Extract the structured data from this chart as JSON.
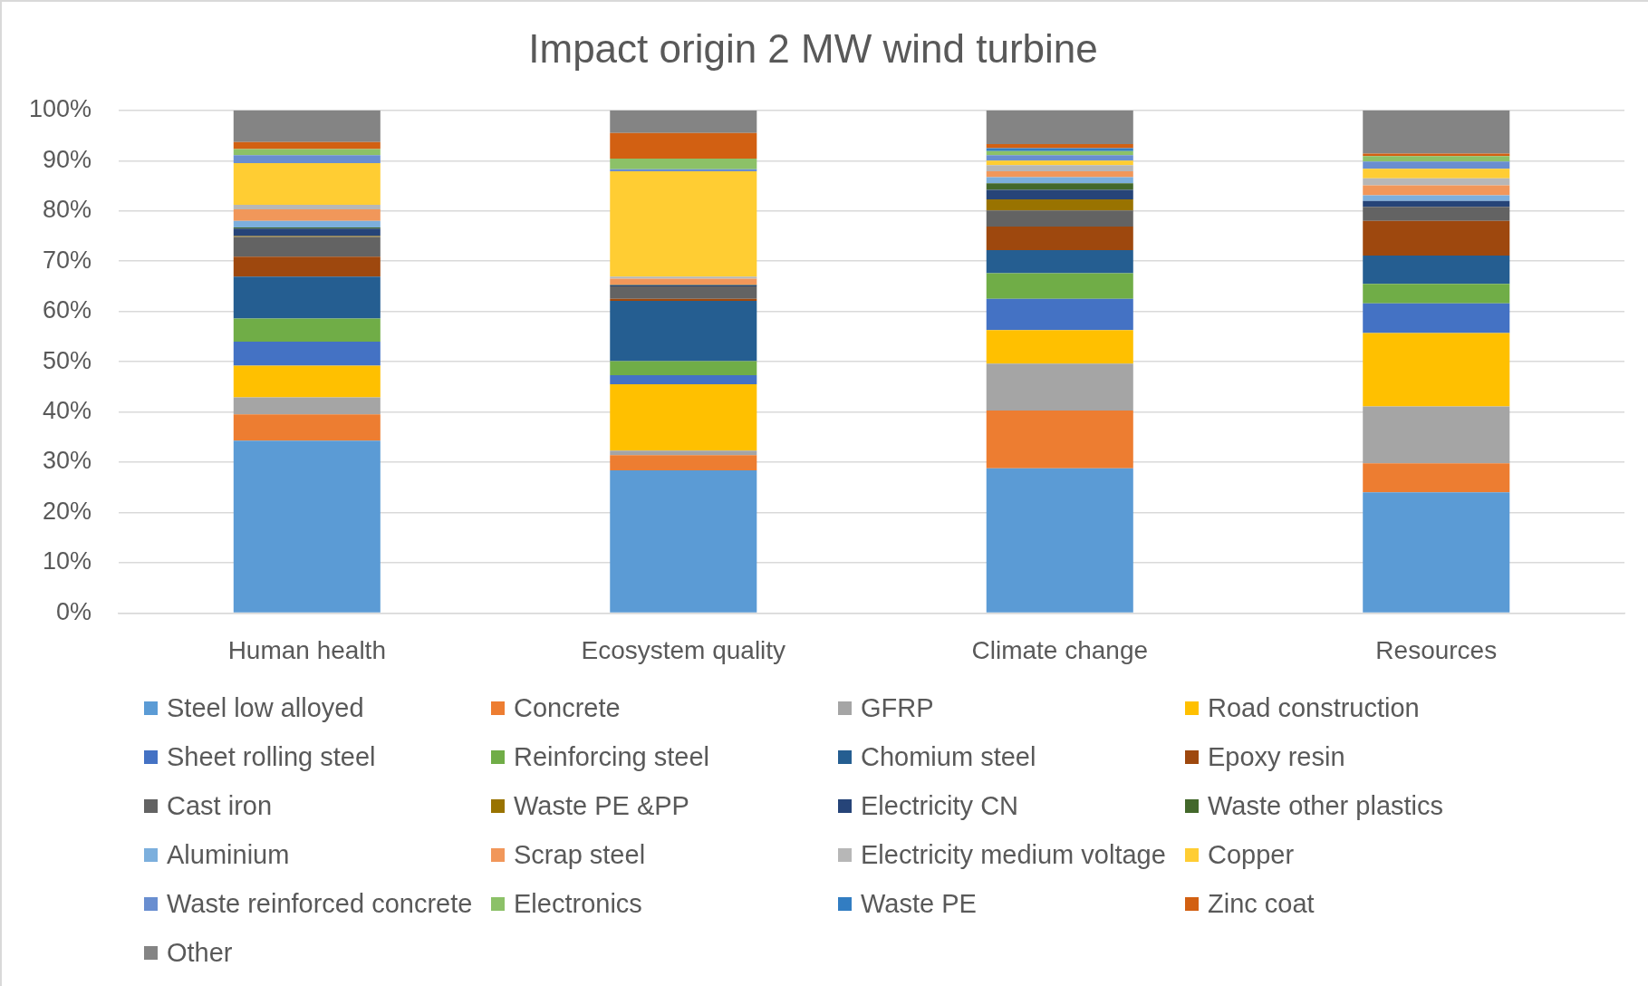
{
  "chart_data": {
    "type": "bar",
    "title": "Impact origin 2 MW wind turbine",
    "categories": [
      "Human health",
      "Ecosystem quality",
      "Climate change",
      "Resources"
    ],
    "stacked": true,
    "grid": "y",
    "legend": "bottom",
    "ylim": [
      0,
      100
    ],
    "yticks": [
      {
        "value": 0,
        "label": "0%"
      },
      {
        "value": 10,
        "label": "10%"
      },
      {
        "value": 20,
        "label": "20%"
      },
      {
        "value": 30,
        "label": "30%"
      },
      {
        "value": 40,
        "label": "40%"
      },
      {
        "value": 50,
        "label": "50%"
      },
      {
        "value": 60,
        "label": "60%"
      },
      {
        "value": 70,
        "label": "70%"
      },
      {
        "value": 80,
        "label": "80%"
      },
      {
        "value": 90,
        "label": "90%"
      },
      {
        "value": 100,
        "label": "100%"
      }
    ],
    "series": [
      {
        "name": "Steel low alloyed",
        "color": "#5b9bd5",
        "values": [
          34.3,
          28.4,
          28.8,
          24.0
        ]
      },
      {
        "name": "Concrete",
        "color": "#ed7d31",
        "values": [
          5.2,
          3.0,
          11.5,
          5.8
        ]
      },
      {
        "name": "GFRP",
        "color": "#a5a5a5",
        "values": [
          3.4,
          0.9,
          9.3,
          11.3
        ]
      },
      {
        "name": "Road construction",
        "color": "#ffc000",
        "values": [
          6.3,
          13.2,
          6.7,
          14.6
        ]
      },
      {
        "name": "Sheet rolling steel",
        "color": "#4472c4",
        "values": [
          4.8,
          1.8,
          6.2,
          5.9
        ]
      },
      {
        "name": "Reinforcing steel",
        "color": "#70ad47",
        "values": [
          4.6,
          2.8,
          5.1,
          3.9
        ]
      },
      {
        "name": "Chomium steel",
        "color": "#255e91",
        "values": [
          8.3,
          12.0,
          4.6,
          5.6
        ]
      },
      {
        "name": "Epoxy resin",
        "color": "#9e480e",
        "values": [
          4.0,
          0.4,
          4.7,
          6.9
        ]
      },
      {
        "name": "Cast iron",
        "color": "#636363",
        "values": [
          3.9,
          2.5,
          3.2,
          2.8
        ]
      },
      {
        "name": "Waste PE &PP",
        "color": "#997300",
        "values": [
          0.2,
          0,
          2.2,
          0
        ]
      },
      {
        "name": "Electricity CN",
        "color": "#264478",
        "values": [
          1.5,
          0.2,
          1.9,
          1.2
        ]
      },
      {
        "name": "Waste other plastics",
        "color": "#43682b",
        "values": [
          0.2,
          0.1,
          1.3,
          0
        ]
      },
      {
        "name": "Aluminium",
        "color": "#7cafdd",
        "values": [
          1.3,
          0,
          1.2,
          1.1
        ]
      },
      {
        "name": "Scrap steel",
        "color": "#f1975a",
        "values": [
          2.3,
          1.2,
          1.2,
          2.0
        ]
      },
      {
        "name": "Electricity medium voltage",
        "color": "#b7b7b7",
        "values": [
          0.9,
          0.4,
          1.2,
          1.4
        ]
      },
      {
        "name": "Copper",
        "color": "#ffcd33",
        "values": [
          8.3,
          21.0,
          0.9,
          1.9
        ]
      },
      {
        "name": "Waste reinforced concrete",
        "color": "#698ed0",
        "values": [
          1.6,
          0.4,
          1.1,
          1.4
        ]
      },
      {
        "name": "Electronics",
        "color": "#8cc168",
        "values": [
          1.2,
          2.1,
          0.8,
          1.1
        ]
      },
      {
        "name": "Waste PE",
        "color": "#327dc2",
        "values": [
          0,
          0,
          0.6,
          0
        ]
      },
      {
        "name": "Zinc coat",
        "color": "#d26012",
        "values": [
          1.4,
          5.1,
          0.8,
          0.5
        ]
      },
      {
        "name": "Other",
        "color": "#848484",
        "values": [
          6.3,
          4.5,
          6.7,
          8.6
        ]
      }
    ]
  }
}
